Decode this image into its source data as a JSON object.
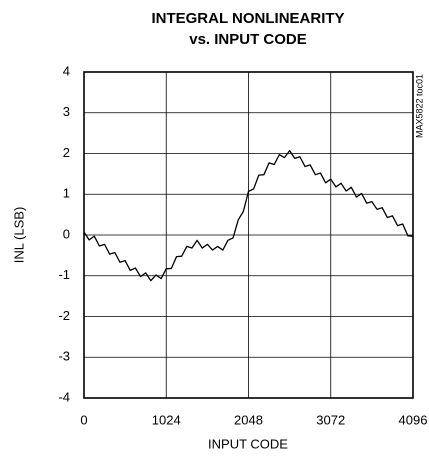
{
  "chart_data": {
    "type": "line",
    "title": "INTEGRAL NONLINEARITY",
    "subtitle": "vs. INPUT CODE",
    "xlabel": "INPUT CODE",
    "ylabel": "INL (LSB)",
    "annotation": "MAX5822 toc01",
    "xlim": [
      0,
      4096
    ],
    "xticks": [
      0,
      1024,
      2048,
      3072,
      4096
    ],
    "ylim": [
      -4,
      4
    ],
    "yticks": [
      -4,
      -3,
      -2,
      -1,
      0,
      1,
      2,
      3,
      4
    ],
    "grid": true,
    "series": [
      {
        "name": "INL",
        "color": "#000000",
        "x": [
          0,
          64,
          128,
          192,
          256,
          320,
          384,
          448,
          512,
          576,
          640,
          704,
          768,
          832,
          896,
          960,
          1024,
          1088,
          1152,
          1216,
          1280,
          1344,
          1408,
          1472,
          1536,
          1600,
          1664,
          1728,
          1792,
          1856,
          1920,
          1984,
          2048,
          2112,
          2176,
          2240,
          2304,
          2368,
          2432,
          2496,
          2560,
          2624,
          2688,
          2752,
          2816,
          2880,
          2944,
          3008,
          3072,
          3136,
          3200,
          3264,
          3328,
          3392,
          3456,
          3520,
          3584,
          3648,
          3712,
          3776,
          3840,
          3904,
          3968,
          4032,
          4096
        ],
        "values": [
          0.07,
          -0.12,
          -0.03,
          -0.27,
          -0.23,
          -0.47,
          -0.43,
          -0.67,
          -0.63,
          -0.87,
          -0.81,
          -1.02,
          -0.93,
          -1.12,
          -0.98,
          -1.07,
          -0.83,
          -0.82,
          -0.53,
          -0.52,
          -0.28,
          -0.32,
          -0.13,
          -0.32,
          -0.23,
          -0.37,
          -0.28,
          -0.37,
          -0.13,
          -0.07,
          0.37,
          0.58,
          1.07,
          1.13,
          1.47,
          1.48,
          1.77,
          1.73,
          1.97,
          1.9,
          2.07,
          1.88,
          1.92,
          1.68,
          1.72,
          1.48,
          1.52,
          1.28,
          1.37,
          1.18,
          1.27,
          1.08,
          1.17,
          0.93,
          1.02,
          0.78,
          0.82,
          0.63,
          0.67,
          0.43,
          0.47,
          0.23,
          0.27,
          -0.02,
          -0.03
        ]
      }
    ]
  }
}
